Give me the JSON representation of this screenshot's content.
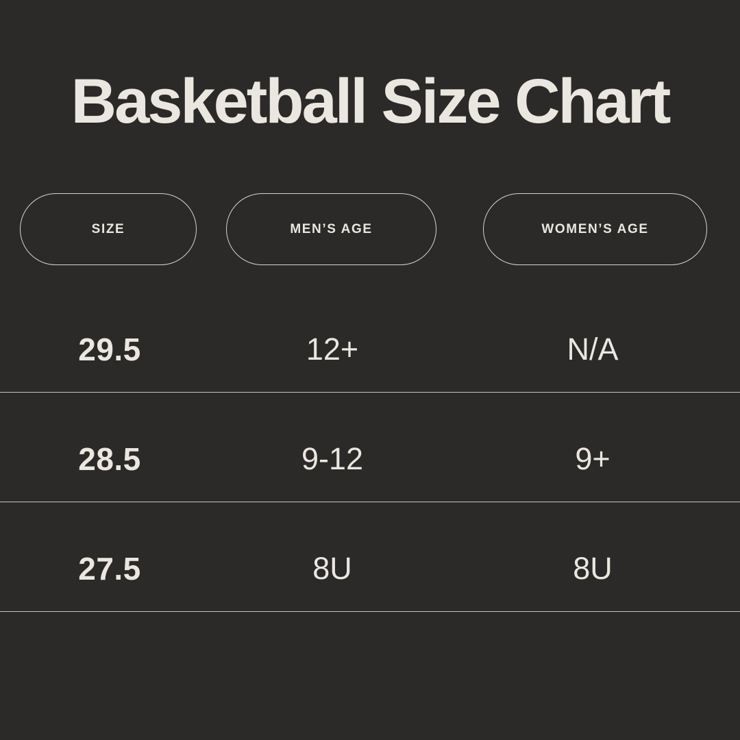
{
  "title": "Basketball Size Chart",
  "chart_data": {
    "type": "table",
    "title": "Basketball Size Chart",
    "columns": [
      "SIZE",
      "MEN’S AGE",
      "WOMEN’S AGE"
    ],
    "rows": [
      [
        "29.5",
        "12+",
        "N/A"
      ],
      [
        "28.5",
        "9-12",
        "9+"
      ],
      [
        "27.5",
        "8U",
        "8U"
      ]
    ],
    "layout": {
      "legend_position": "none",
      "grid": "horizontal-dividers-only"
    }
  },
  "colors": {
    "background": "#2b2a28",
    "text": "#eae7e1",
    "pill_border": "#d8d5cf",
    "divider": "#c9c6c1"
  }
}
